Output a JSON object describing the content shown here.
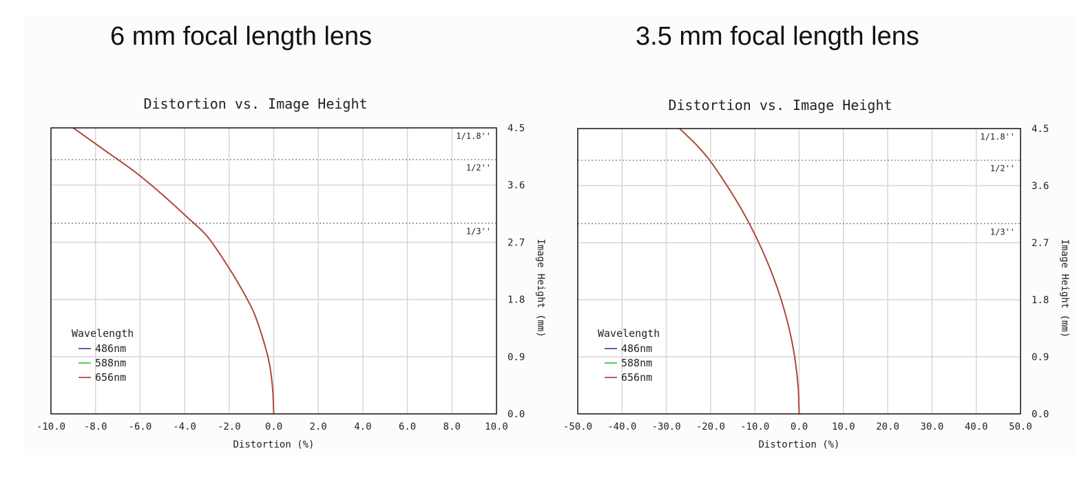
{
  "panels": [
    {
      "heading": "6 mm focal length lens"
    },
    {
      "heading": "3.5 mm focal length lens"
    }
  ],
  "chart_data": [
    {
      "type": "line",
      "title": "Distortion vs. Image Height",
      "xlabel": "Distortion (%)",
      "ylabel": "Image Height (mm)",
      "xlim": [
        -10.0,
        10.0
      ],
      "ylim": [
        0.0,
        4.5
      ],
      "xticks": [
        "-10.0",
        "-8.0",
        "-6.0",
        "-4.0",
        "-2.0",
        "0.0",
        "2.0",
        "4.0",
        "6.0",
        "8.0",
        "10.0"
      ],
      "yticks": [
        "0.0",
        "0.9",
        "1.8",
        "2.7",
        "3.6",
        "4.5"
      ],
      "grid": true,
      "legend": {
        "title": "Wavelength",
        "position": "bottom-left"
      },
      "sensor_lines": [
        {
          "label": "1/1.8''",
          "y": 4.5
        },
        {
          "label": "1/2''",
          "y": 4.0
        },
        {
          "label": "1/3''",
          "y": 3.0
        }
      ],
      "series": [
        {
          "name": "486nm",
          "color": "#4a4aa8",
          "x": [
            0,
            -0.05,
            -0.2,
            -0.5,
            -0.9,
            -1.5,
            -2.2,
            -3.0,
            -3.9,
            -5.0,
            -6.2,
            -7.6,
            -9.0
          ],
          "y": [
            0,
            0.4,
            0.8,
            1.2,
            1.6,
            2.0,
            2.4,
            2.8,
            3.1,
            3.45,
            3.8,
            4.15,
            4.5
          ]
        },
        {
          "name": "588nm",
          "color": "#3ec43e",
          "x": [
            0,
            -0.05,
            -0.2,
            -0.5,
            -0.9,
            -1.5,
            -2.2,
            -3.0,
            -3.9,
            -5.0,
            -6.2,
            -7.6,
            -9.0
          ],
          "y": [
            0,
            0.4,
            0.8,
            1.2,
            1.6,
            2.0,
            2.4,
            2.8,
            3.1,
            3.45,
            3.8,
            4.15,
            4.5
          ]
        },
        {
          "name": "656nm",
          "color": "#c0403c",
          "x": [
            0,
            -0.05,
            -0.2,
            -0.5,
            -0.9,
            -1.5,
            -2.2,
            -3.0,
            -3.9,
            -5.0,
            -6.2,
            -7.6,
            -9.0
          ],
          "y": [
            0,
            0.4,
            0.8,
            1.2,
            1.6,
            2.0,
            2.4,
            2.8,
            3.1,
            3.45,
            3.8,
            4.15,
            4.5
          ]
        }
      ]
    },
    {
      "type": "line",
      "title": "Distortion vs. Image Height",
      "xlabel": "Distortion (%)",
      "ylabel": "Image Height (mm)",
      "xlim": [
        -50.0,
        50.0
      ],
      "ylim": [
        0.0,
        4.5
      ],
      "xticks": [
        "-50.0",
        "-40.0",
        "-30.0",
        "-20.0",
        "-10.0",
        "0.0",
        "10.0",
        "20.0",
        "30.0",
        "40.0",
        "50.0"
      ],
      "yticks": [
        "0.0",
        "0.9",
        "1.8",
        "2.7",
        "3.6",
        "4.5"
      ],
      "grid": true,
      "legend": {
        "title": "Wavelength",
        "position": "bottom-left"
      },
      "sensor_lines": [
        {
          "label": "1/1.8''",
          "y": 4.5
        },
        {
          "label": "1/2''",
          "y": 4.0
        },
        {
          "label": "1/3''",
          "y": 3.0
        }
      ],
      "series": [
        {
          "name": "486nm",
          "color": "#4a4aa8",
          "x": [
            0,
            -0.2,
            -0.8,
            -1.8,
            -3.2,
            -5.0,
            -7.2,
            -9.8,
            -12.8,
            -16.3,
            -20.2,
            -23.3,
            -27.0
          ],
          "y": [
            0,
            0.4,
            0.8,
            1.2,
            1.6,
            2.0,
            2.4,
            2.8,
            3.2,
            3.6,
            4.0,
            4.25,
            4.5
          ]
        },
        {
          "name": "588nm",
          "color": "#3ec43e",
          "x": [
            0,
            -0.2,
            -0.8,
            -1.8,
            -3.2,
            -5.0,
            -7.2,
            -9.8,
            -12.8,
            -16.3,
            -20.2,
            -23.3,
            -27.0
          ],
          "y": [
            0,
            0.4,
            0.8,
            1.2,
            1.6,
            2.0,
            2.4,
            2.8,
            3.2,
            3.6,
            4.0,
            4.25,
            4.5
          ]
        },
        {
          "name": "656nm",
          "color": "#c0403c",
          "x": [
            0,
            -0.2,
            -0.8,
            -1.8,
            -3.2,
            -5.0,
            -7.2,
            -9.8,
            -12.8,
            -16.3,
            -20.2,
            -23.3,
            -27.0
          ],
          "y": [
            0,
            0.4,
            0.8,
            1.2,
            1.6,
            2.0,
            2.4,
            2.8,
            3.2,
            3.6,
            4.0,
            4.25,
            4.5
          ]
        }
      ]
    }
  ]
}
